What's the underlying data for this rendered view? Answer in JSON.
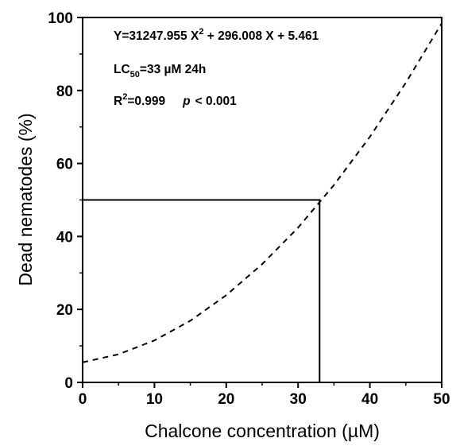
{
  "chart_data": {
    "type": "line",
    "xlabel": "Chalcone concentration (µM)",
    "ylabel": "Dead nematodes (%)",
    "xlim": [
      0,
      50
    ],
    "ylim": [
      0,
      100
    ],
    "xticks": [
      0,
      10,
      20,
      30,
      40,
      50
    ],
    "yticks": [
      0,
      20,
      40,
      60,
      80,
      100
    ],
    "xminorticks": [
      5,
      15,
      25,
      35,
      45
    ],
    "yminorticks": [
      10,
      30,
      50,
      70,
      90
    ],
    "series": [
      {
        "color": "#000000",
        "style": "dashed",
        "x": [
          0,
          5,
          10,
          15,
          20,
          25,
          30,
          35,
          40,
          45,
          50
        ],
        "values": [
          5.5,
          7.7,
          11.5,
          16.9,
          23.9,
          32.4,
          42.4,
          54.1,
          67.3,
          82.1,
          98.4
        ]
      },
      {
        "color": "#000000",
        "style": "solid",
        "x": [
          0,
          33,
          33
        ],
        "values": [
          50,
          50,
          0
        ]
      }
    ],
    "annotations": [
      [
        "Y=31247.955 X",
        "2",
        " + 296.008 X + 5.461"
      ],
      [
        "LC",
        "50",
        "=33 µM 24h"
      ],
      [
        "R",
        "2",
        "=0.999",
        "p",
        "< 0.001"
      ]
    ]
  }
}
